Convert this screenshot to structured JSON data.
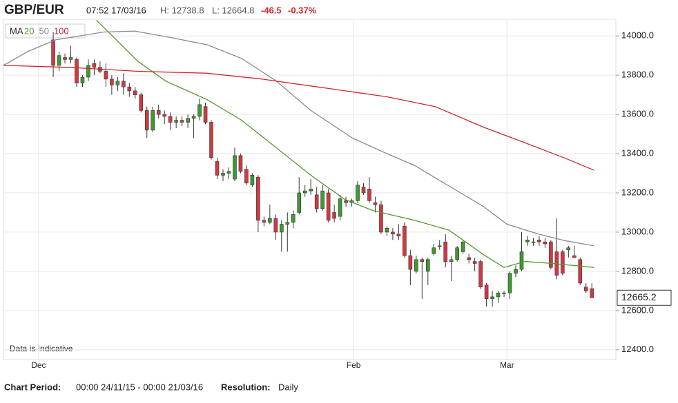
{
  "header": {
    "symbol": "GBP/EUR",
    "time": "07:52 17/03/16",
    "high": "H: 12738.8",
    "low": "L: 12664.8",
    "change": "-46.5",
    "change_pct": "-0.37%"
  },
  "chart_data": {
    "type": "candlestick",
    "legend_title": "MA",
    "note": "Data is Indicative",
    "up_color": "#3d9a2f",
    "down_color": "#cf3a42",
    "xlim": [
      -8.5,
      96.1
    ],
    "xticks": [
      {
        "value": -2.5,
        "label": "Dec"
      },
      {
        "value": 51.3,
        "label": "Feb"
      },
      {
        "value": 77.5,
        "label": "Mar"
      }
    ],
    "ylim": [
      12350,
      14085
    ],
    "yticks": [
      {
        "value": 12400,
        "label": "12400.0"
      },
      {
        "value": 12600,
        "label": "12600.0"
      },
      {
        "value": 12800,
        "label": "12800.0"
      },
      {
        "value": 13000,
        "label": "13000.0"
      },
      {
        "value": 13200,
        "label": "13200.0"
      },
      {
        "value": 13400,
        "label": "13400.0"
      },
      {
        "value": 13600,
        "label": "13600.0"
      },
      {
        "value": 13800,
        "label": "13800.0"
      },
      {
        "value": 14000,
        "label": "14000.0"
      }
    ],
    "grid": true,
    "last_price": 12665.2,
    "candles": {
      "open": [
        13980,
        13850,
        13890,
        13880,
        13880,
        13760,
        13790,
        13860,
        13840,
        13820,
        13780,
        13750,
        13770,
        13740,
        13720,
        13700,
        13620,
        13520,
        13620,
        13600,
        13590,
        13560,
        13570,
        13560,
        13580,
        13590,
        13640,
        13560,
        13360,
        13290,
        13300,
        13270,
        13390,
        13320,
        13240,
        13280,
        13060,
        13050,
        13070,
        13000,
        13040,
        13050,
        13100,
        13200,
        13210,
        13190,
        13120,
        13200,
        13100,
        13080,
        13160,
        13150,
        13160,
        13230,
        13220,
        13150,
        13140,
        13000,
        13000,
        12990,
        13030,
        12880,
        12800,
        12860,
        12800,
        12890,
        12930,
        12950,
        12850,
        12860,
        12900,
        12870,
        12850,
        12850,
        12730,
        12660,
        12670,
        12690,
        12690,
        12790,
        12810,
        12950,
        12950,
        12960,
        12950,
        12950,
        12900,
        12900,
        12910,
        12880,
        12860,
        12720,
        12711.7
      ],
      "high": [
        14020,
        13920,
        13910,
        13950,
        13890,
        13800,
        13880,
        13880,
        13870,
        13860,
        13800,
        13790,
        13810,
        13760,
        13740,
        13710,
        13640,
        13640,
        13650,
        13620,
        13610,
        13590,
        13590,
        13600,
        13600,
        13680,
        13660,
        13570,
        13380,
        13320,
        13330,
        13430,
        13400,
        13340,
        13300,
        13290,
        13080,
        13140,
        13090,
        13060,
        13100,
        13110,
        13280,
        13240,
        13270,
        13230,
        13240,
        13220,
        13140,
        13190,
        13180,
        13170,
        13260,
        13250,
        13280,
        13180,
        13160,
        13030,
        13020,
        13040,
        13050,
        12910,
        12880,
        12870,
        12870,
        12940,
        12960,
        12990,
        12880,
        12930,
        12960,
        12890,
        12870,
        12860,
        12740,
        12700,
        12700,
        12700,
        12800,
        12830,
        13000,
        12980,
        12970,
        12980,
        12970,
        12960,
        13070,
        12910,
        12930,
        12930,
        12870,
        12740,
        12738.8
      ],
      "low": [
        13790,
        13820,
        13860,
        13860,
        13740,
        13740,
        13770,
        13800,
        13810,
        13740,
        13700,
        13720,
        13700,
        13690,
        13680,
        13610,
        13480,
        13510,
        13580,
        13550,
        13520,
        13530,
        13540,
        13530,
        13480,
        13570,
        13550,
        13370,
        13270,
        13260,
        13270,
        13260,
        13300,
        13240,
        13230,
        13000,
        13030,
        13040,
        12960,
        12900,
        12900,
        13020,
        13090,
        13180,
        13190,
        13100,
        13110,
        13050,
        13050,
        13060,
        13130,
        13130,
        13150,
        13190,
        13150,
        13100,
        12990,
        12980,
        12960,
        12960,
        12870,
        12730,
        12790,
        12660,
        12730,
        12880,
        12910,
        12820,
        12750,
        12850,
        12890,
        12840,
        12800,
        12710,
        12620,
        12620,
        12640,
        12670,
        12660,
        12770,
        12800,
        12930,
        12930,
        12930,
        12920,
        12810,
        12760,
        12780,
        12870,
        12870,
        12730,
        12690,
        12664.8
      ],
      "close": [
        13850,
        13900,
        13880,
        13890,
        13760,
        13790,
        13850,
        13840,
        13820,
        13780,
        13750,
        13770,
        13740,
        13720,
        13700,
        13620,
        13520,
        13620,
        13600,
        13590,
        13560,
        13570,
        13560,
        13580,
        13590,
        13650,
        13560,
        13380,
        13290,
        13300,
        13310,
        13390,
        13310,
        13250,
        13290,
        13060,
        13050,
        13070,
        13000,
        13040,
        13050,
        13090,
        13200,
        13210,
        13220,
        13120,
        13210,
        13060,
        13070,
        13170,
        13150,
        13160,
        13240,
        13200,
        13160,
        13140,
        13000,
        13020,
        12990,
        12980,
        12880,
        12810,
        12860,
        12850,
        12860,
        12920,
        12930,
        12850,
        12860,
        12920,
        12950,
        12860,
        12840,
        12720,
        12660,
        12670,
        12690,
        12690,
        12790,
        12810,
        12900,
        12960,
        12950,
        12950,
        12940,
        12820,
        12780,
        12790,
        12920,
        12870,
        12740,
        12700,
        12665.2
      ]
    },
    "series": [
      {
        "name": "20",
        "color": "#4f9a2a",
        "x": [
          7.4,
          14.5,
          19.2,
          26.3,
          32.2,
          38.1,
          44,
          49.9,
          54.6,
          61.7,
          67.6,
          73.5,
          77,
          80.6,
          85.3,
          92.4
        ],
        "values": [
          14080,
          13870,
          13770,
          13675,
          13570,
          13430,
          13290,
          13165,
          13110,
          13060,
          13010,
          12885,
          12820,
          12850,
          12840,
          12820
        ]
      },
      {
        "name": "50",
        "color": "#8a8a8a",
        "x": [
          -8.5,
          -4.4,
          0.4,
          8.6,
          13.9,
          20.4,
          26.3,
          32.2,
          38.1,
          44,
          51.1,
          57,
          61.7,
          67.6,
          73.5,
          77.5,
          82.9,
          87.6,
          92.4
        ],
        "values": [
          13850,
          13920,
          13980,
          14020,
          14025,
          13990,
          13955,
          13885,
          13770,
          13620,
          13480,
          13400,
          13340,
          13235,
          13130,
          13040,
          12990,
          12955,
          12930
        ]
      },
      {
        "name": "100",
        "color": "#d1252c",
        "x": [
          -8.5,
          2.7,
          14.5,
          26.3,
          35.7,
          44,
          51.1,
          57,
          65.2,
          73.5,
          80.6,
          87.6,
          92.4
        ],
        "values": [
          13850,
          13840,
          13820,
          13810,
          13780,
          13745,
          13715,
          13690,
          13640,
          13535,
          13455,
          13375,
          13315
        ]
      }
    ]
  },
  "footer": {
    "period_label": "Chart Period:",
    "period": "00:00 24/11/15 - 00:00 21/03/16",
    "resolution_label": "Resolution:",
    "resolution": "Daily"
  }
}
